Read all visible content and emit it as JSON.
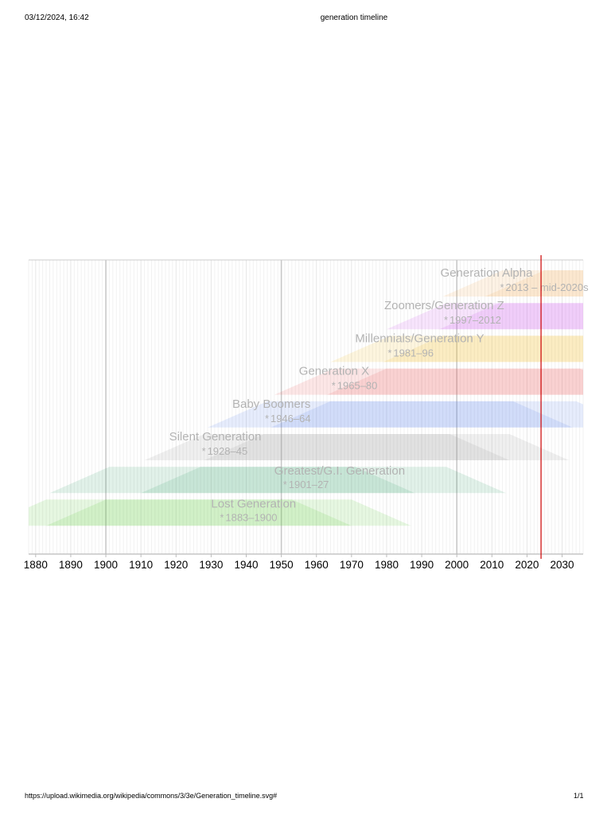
{
  "page": {
    "header_datetime": "03/12/2024, 16:42",
    "header_title": "generation timeline",
    "footer_url": "https://upload.wikimedia.org/wikipedia/commons/3/3e/Generation_timeline.svg#",
    "footer_page": "1/1"
  },
  "chart_data": {
    "type": "timeline",
    "title": "",
    "xlabel": "",
    "ylabel": "",
    "xlim": [
      1878,
      2036
    ],
    "grid": true,
    "x_ticks": [
      1880,
      1890,
      1900,
      1910,
      1920,
      1930,
      1940,
      1950,
      1960,
      1970,
      1980,
      1990,
      2000,
      2010,
      2020,
      2030
    ],
    "current_year_marker": 2024,
    "current_year_color": "#cc0000",
    "series": [
      {
        "name": "Lost Generation",
        "years_label": "1883–1900",
        "birth_start": 1883,
        "birth_end": 1900,
        "color": "#66cc44",
        "tiers": [
          {
            "start": 1883,
            "end": 1953
          },
          {
            "start": 1900,
            "end": 1970
          }
        ]
      },
      {
        "name": "Greatest/G.I. Generation",
        "years_label": "1901–27",
        "birth_start": 1901,
        "birth_end": 1927,
        "color": "#44aa77",
        "tiers": [
          {
            "start": 1901,
            "end": 1971
          },
          {
            "start": 1927,
            "end": 1997
          }
        ]
      },
      {
        "name": "Silent Generation",
        "years_label": "1928–45",
        "birth_start": 1928,
        "birth_end": 1945,
        "color": "#999999",
        "tiers": [
          {
            "start": 1928,
            "end": 1998
          },
          {
            "start": 1945,
            "end": 2015
          }
        ]
      },
      {
        "name": "Baby Boomers",
        "years_label": "1946–64",
        "birth_start": 1946,
        "birth_end": 1964,
        "color": "#6688ee",
        "tiers": [
          {
            "start": 1946,
            "end": 2016
          },
          {
            "start": 1964,
            "end": 2034
          }
        ]
      },
      {
        "name": "Generation X",
        "years_label": "1965–80",
        "birth_start": 1965,
        "birth_end": 1980,
        "color": "#ee6666",
        "tiers": [
          {
            "start": 1965,
            "end": 2035
          },
          {
            "start": 1980,
            "end": 2050
          }
        ]
      },
      {
        "name": "Millennials/Generation Y",
        "years_label": "1981–96",
        "birth_start": 1981,
        "birth_end": 1996,
        "color": "#f2c033",
        "tiers": [
          {
            "start": 1981,
            "end": 2051
          },
          {
            "start": 1996,
            "end": 2066
          }
        ]
      },
      {
        "name": "Zoomers/Generation Z",
        "years_label": "1997–2012",
        "birth_start": 1997,
        "birth_end": 2012,
        "color": "#cc55ee",
        "tiers": [
          {
            "start": 1997,
            "end": 2067
          },
          {
            "start": 2012,
            "end": 2082
          }
        ]
      },
      {
        "name": "Generation Alpha",
        "years_label": "2013 – mid-2020s",
        "birth_start": 2013,
        "birth_end": 2025,
        "color": "#f5b060",
        "tiers": [
          {
            "start": 2013,
            "end": 2083
          },
          {
            "start": 2025,
            "end": 2095
          }
        ]
      }
    ]
  }
}
